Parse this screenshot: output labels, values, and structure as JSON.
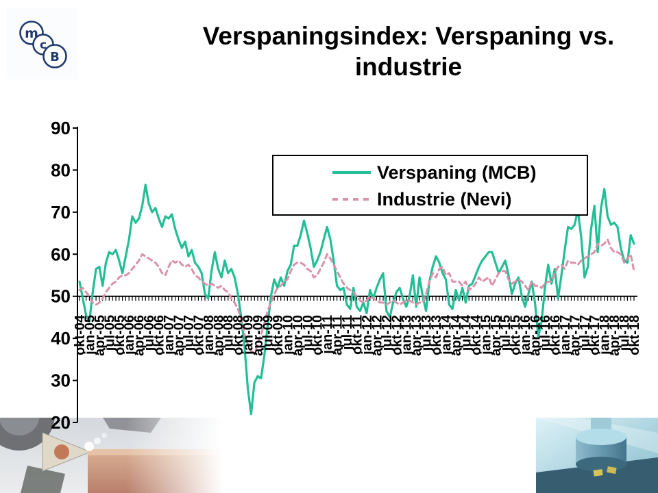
{
  "slide": {
    "title_line1": "Verspaningsindex: Verspaning vs.",
    "title_line2": "industrie"
  },
  "logo": {
    "letters": [
      "m",
      "c",
      "B"
    ],
    "color": "#1f3a6b"
  },
  "legend": {
    "items": [
      {
        "label": "Verspaning (MCB)",
        "color": "#23be96",
        "style": "solid"
      },
      {
        "label": "Industrie (Nevi)",
        "color": "#d892aa",
        "style": "dashed"
      }
    ]
  },
  "chart_data": {
    "type": "line",
    "title": "Verspaningsindex: Verspaning vs. industrie",
    "x_interval": "monthly",
    "x_range": [
      "okt-04",
      "okt-18"
    ],
    "ylim": [
      20,
      90
    ],
    "y_ticks": [
      20,
      30,
      40,
      50,
      60,
      70,
      80,
      90
    ],
    "x_axis_crosses_at": 50,
    "grid": false,
    "legend_position": "top-center-framed",
    "x_labels": [
      "okt-04",
      "jan-05",
      "apr-05",
      "jul-05",
      "okt-05",
      "jan-06",
      "apr-06",
      "jul-06",
      "okt-06",
      "jan-07",
      "apr-07",
      "jul-07",
      "okt-07",
      "jan-08",
      "apr-08",
      "jul-08",
      "okt-08",
      "jan-09",
      "apr-09",
      "jul-09",
      "okt-09",
      "jan-10",
      "apr-10",
      "jul-10",
      "okt-10",
      "jan-11",
      "apr-11",
      "jul-11",
      "okt-11",
      "jan-12",
      "apr-12",
      "jul-12",
      "okt-12",
      "jan-13",
      "apr-13",
      "jul-13",
      "okt-13",
      "jan-14",
      "apr-14",
      "jul-14",
      "okt-14",
      "jan-15",
      "apr-15",
      "jul-15",
      "okt-15",
      "jan-16",
      "apr-16",
      "jul-16",
      "okt-16",
      "jan-17",
      "apr-17",
      "jul-17",
      "okt-17",
      "jan-18",
      "apr-18",
      "jul-18",
      "okt-18"
    ],
    "series": [
      {
        "name": "Verspaning (MCB)",
        "color": "#23be96",
        "style": "solid",
        "values": [
          53.5,
          49.5,
          45.5,
          44,
          51,
          56.5,
          57,
          52.5,
          58,
          60.5,
          60,
          61,
          58.5,
          55.5,
          59.5,
          63.5,
          69,
          67.5,
          68.5,
          71.5,
          76.5,
          72,
          70,
          71,
          68.5,
          66.5,
          69,
          68.5,
          69.5,
          66,
          63.5,
          61.5,
          63,
          59.5,
          61,
          58,
          57,
          55.5,
          50.5,
          49.5,
          56,
          60.5,
          56.5,
          54.5,
          58.5,
          55.5,
          56.5,
          54.5,
          50.5,
          45,
          38,
          28,
          22,
          29.5,
          31,
          30.5,
          36,
          43,
          50,
          54,
          52,
          54.5,
          52.5,
          56,
          57.5,
          62,
          62,
          64.5,
          68,
          65,
          61.5,
          57,
          58.5,
          60.5,
          63.5,
          66.5,
          63.5,
          58.5,
          52.5,
          51.5,
          52,
          48,
          47,
          52,
          47.5,
          46.5,
          48.5,
          46,
          51.5,
          49.5,
          52,
          54,
          55.5,
          46.5,
          45,
          48.5,
          51,
          52,
          49.5,
          47.5,
          50,
          55,
          47.5,
          54.5,
          50,
          46.5,
          53.5,
          57,
          59.5,
          58,
          55.5,
          54,
          48,
          47,
          51.5,
          49,
          52,
          48.5,
          52.5,
          53,
          55,
          57,
          58.5,
          59.5,
          60.5,
          60.5,
          58,
          55.5,
          57,
          58.5,
          55,
          50.5,
          53,
          54.5,
          50,
          47.5,
          50.5,
          53.5,
          48.5,
          40.5,
          44,
          52,
          57.5,
          53,
          56.5,
          49.5,
          55,
          61,
          66.5,
          66,
          67,
          70.5,
          64,
          54.5,
          57,
          66,
          71.5,
          60.5,
          71,
          75.5,
          69,
          67,
          67.5,
          66.5,
          61.5,
          58.5,
          58,
          64.5,
          62.5
        ]
      },
      {
        "name": "Industrie (Nevi)",
        "color": "#d892aa",
        "style": "dashed",
        "values": [
          51.5,
          52,
          51,
          50,
          48.5,
          48,
          48.5,
          49.5,
          51,
          52,
          53,
          53.5,
          54.5,
          55,
          55,
          55.5,
          56.5,
          57.5,
          58.5,
          60,
          59.5,
          59,
          58.5,
          58,
          57,
          55.5,
          55,
          57,
          58.5,
          58,
          58.5,
          57.5,
          57,
          57.5,
          56.5,
          55,
          54.5,
          53.5,
          53,
          52.5,
          53,
          52.5,
          52,
          52.5,
          51.5,
          51,
          49.5,
          48.5,
          47,
          44.5,
          41,
          38.5,
          37,
          36.5,
          38.5,
          41,
          43.5,
          46.5,
          48.5,
          50.5,
          52,
          52.5,
          53.5,
          54,
          56,
          57.5,
          58,
          58,
          57.5,
          56.5,
          56,
          54.5,
          55,
          56.5,
          58,
          60,
          59,
          57.5,
          56,
          54.5,
          53,
          52,
          51.5,
          51,
          50,
          49,
          48.5,
          49,
          50,
          49.5,
          49,
          48.5,
          48.5,
          48,
          48.5,
          49,
          48.5,
          48,
          48.5,
          49,
          49,
          48.5,
          48,
          48.5,
          48.5,
          50.5,
          53.5,
          55.5,
          54.5,
          56.5,
          57,
          55,
          55.5,
          53.5,
          53.5,
          53.5,
          52.5,
          53.5,
          51.5,
          52,
          53,
          54.5,
          53.5,
          54,
          54.5,
          52.5,
          54,
          55.5,
          56,
          56,
          54,
          53,
          53.5,
          54,
          53.5,
          52.5,
          51.5,
          53.5,
          52.5,
          52.5,
          52,
          53,
          53.5,
          53.5,
          55.5,
          57,
          57.5,
          56.5,
          58.5,
          58,
          58,
          57.5,
          58.5,
          59,
          59.5,
          60,
          60.5,
          62.5,
          62,
          62.5,
          63.5,
          61.5,
          60.5,
          60.5,
          60,
          58,
          59,
          60,
          56
        ]
      }
    ]
  }
}
